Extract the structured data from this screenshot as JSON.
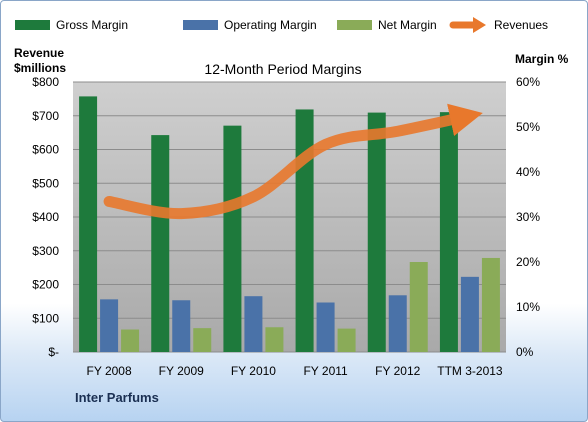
{
  "chart_data": {
    "type": "bar",
    "title": "12-Month Period Margins",
    "left_axis_label_line1": "Revenue",
    "left_axis_label_line2": "$millions",
    "right_axis_label": "Margin %",
    "footer_label": "Inter Parfums",
    "categories": [
      "FY 2008",
      "FY 2009",
      "FY 2010",
      "FY 2011",
      "FY 2012",
      "TTM 3-2013"
    ],
    "left_axis": {
      "min": 0,
      "max": 800,
      "step": 100,
      "tick_labels": [
        "$-",
        "$100",
        "$200",
        "$300",
        "$400",
        "$500",
        "$600",
        "$700",
        "$800"
      ]
    },
    "right_axis": {
      "min": 0,
      "max": 60,
      "step": 10,
      "tick_labels": [
        "0%",
        "10%",
        "20%",
        "30%",
        "40%",
        "50%",
        "60%"
      ]
    },
    "series": [
      {
        "name": "Gross Margin",
        "kind": "bar",
        "axis": "right",
        "color": "#1e7a3c",
        "values": [
          56.8,
          48.2,
          50.3,
          53.9,
          53.2,
          53.3
        ]
      },
      {
        "name": "Operating Margin",
        "kind": "bar",
        "axis": "right",
        "color": "#4a72a8",
        "values": [
          11.7,
          11.5,
          12.4,
          11.0,
          12.6,
          16.7
        ]
      },
      {
        "name": "Net Margin",
        "kind": "bar",
        "axis": "right",
        "color": "#8aab58",
        "values": [
          5.0,
          5.3,
          5.5,
          5.2,
          20.0,
          20.9
        ]
      },
      {
        "name": "Revenues",
        "kind": "line",
        "axis": "left",
        "color": "#e8782c",
        "values": [
          446,
          410,
          460,
          615,
          654,
          700
        ]
      }
    ],
    "grid": true,
    "legend_position": "top",
    "plot_background": "#bdbdbd"
  }
}
